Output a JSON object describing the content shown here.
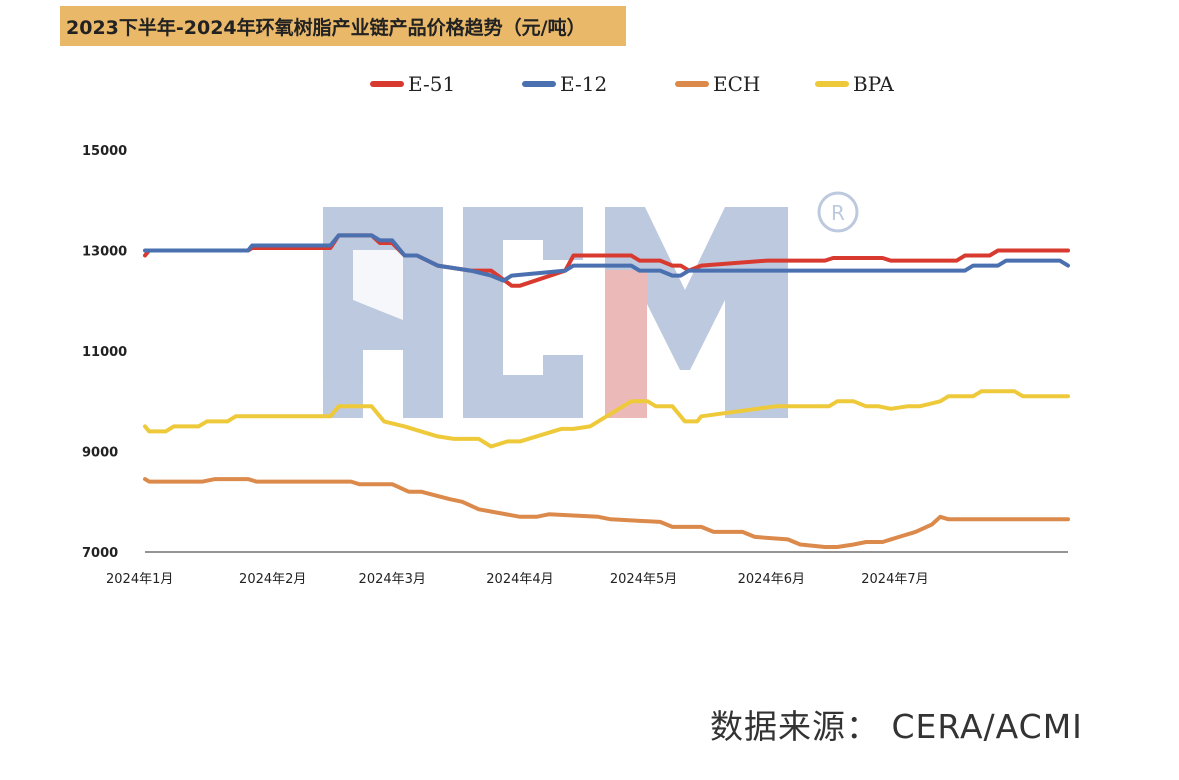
{
  "colors": {
    "E-51": "#d83a2f",
    "E-12": "#4a70b0",
    "ECH": "#dc8a4c",
    "BPA": "#eec93a",
    "title_bg": "#e9b869",
    "watermark": "#a8b8d4",
    "watermark_accent": "#e6a2a2"
  },
  "watermark": {
    "text": "ACMI"
  },
  "source": {
    "text": "数据来源： CERA/ACMI"
  },
  "chart_data": {
    "type": "line",
    "title": "2023下半年-2024年环氧树脂产业链产品价格趋势（元/吨）",
    "xlabel": "",
    "ylabel": "",
    "ylim": [
      7000,
      15000
    ],
    "yticks": [
      "7000",
      "9000",
      "11000",
      "13000",
      "15000"
    ],
    "xticks": [
      "2024年1月",
      "2024年2月",
      "2024年3月",
      "2024年4月",
      "2024年5月",
      "2024年6月",
      "2024年7月"
    ],
    "x_domain": [
      "2024-01-01",
      "2024-08-12"
    ],
    "x_tick_dates": [
      "2024-01-01",
      "2024-02-01",
      "2024-03-01",
      "2024-04-01",
      "2024-05-01",
      "2024-06-01",
      "2024-07-01"
    ],
    "legend": "top",
    "grid": false,
    "series": [
      {
        "name": "E-51",
        "x": [
          "2024-01-01",
          "2024-01-02",
          "2024-01-26",
          "2024-01-27",
          "2024-02-15",
          "2024-02-17",
          "2024-02-25",
          "2024-02-27",
          "2024-03-01",
          "2024-03-04",
          "2024-03-07",
          "2024-03-12",
          "2024-03-20",
          "2024-03-25",
          "2024-03-30",
          "2024-04-01",
          "2024-04-12",
          "2024-04-14",
          "2024-04-28",
          "2024-04-30",
          "2024-05-05",
          "2024-05-08",
          "2024-05-10",
          "2024-05-12",
          "2024-05-15",
          "2024-05-31",
          "2024-06-02",
          "2024-06-14",
          "2024-06-16",
          "2024-06-28",
          "2024-06-30",
          "2024-07-05",
          "2024-07-07",
          "2024-07-16",
          "2024-07-18",
          "2024-07-24",
          "2024-07-26",
          "2024-08-12"
        ],
        "y": [
          12900,
          13000,
          13000,
          13050,
          13050,
          13300,
          13300,
          13150,
          13150,
          12900,
          12900,
          12700,
          12600,
          12600,
          12300,
          12300,
          12600,
          12900,
          12900,
          12800,
          12800,
          12700,
          12700,
          12600,
          12700,
          12800,
          12800,
          12800,
          12850,
          12850,
          12800,
          12800,
          12800,
          12800,
          12900,
          12900,
          13000,
          13000
        ]
      },
      {
        "name": "E-12",
        "x": [
          "2024-01-01",
          "2024-01-26",
          "2024-01-27",
          "2024-02-15",
          "2024-02-17",
          "2024-02-25",
          "2024-02-27",
          "2024-03-01",
          "2024-03-04",
          "2024-03-07",
          "2024-03-12",
          "2024-03-20",
          "2024-03-25",
          "2024-03-28",
          "2024-03-30",
          "2024-04-12",
          "2024-04-14",
          "2024-04-28",
          "2024-04-30",
          "2024-05-05",
          "2024-05-08",
          "2024-05-10",
          "2024-05-12",
          "2024-07-18",
          "2024-07-20",
          "2024-07-26",
          "2024-07-28",
          "2024-08-10",
          "2024-08-12"
        ],
        "y": [
          13000,
          13000,
          13100,
          13100,
          13300,
          13300,
          13200,
          13200,
          12900,
          12900,
          12700,
          12600,
          12500,
          12400,
          12500,
          12600,
          12700,
          12700,
          12600,
          12600,
          12500,
          12500,
          12600,
          12600,
          12700,
          12700,
          12800,
          12800,
          12700
        ]
      },
      {
        "name": "ECH",
        "x": [
          "2024-01-01",
          "2024-01-02",
          "2024-01-15",
          "2024-01-18",
          "2024-01-26",
          "2024-01-28",
          "2024-02-20",
          "2024-02-22",
          "2024-03-01",
          "2024-03-05",
          "2024-03-08",
          "2024-03-15",
          "2024-03-18",
          "2024-03-22",
          "2024-04-01",
          "2024-04-05",
          "2024-04-08",
          "2024-04-20",
          "2024-04-23",
          "2024-05-05",
          "2024-05-08",
          "2024-05-15",
          "2024-05-18",
          "2024-05-25",
          "2024-05-28",
          "2024-06-05",
          "2024-06-08",
          "2024-06-14",
          "2024-06-17",
          "2024-06-21",
          "2024-06-24",
          "2024-06-28",
          "2024-07-02",
          "2024-07-06",
          "2024-07-10",
          "2024-07-12",
          "2024-07-14",
          "2024-08-12"
        ],
        "y": [
          8450,
          8400,
          8400,
          8450,
          8450,
          8400,
          8400,
          8350,
          8350,
          8200,
          8200,
          8050,
          8000,
          7850,
          7700,
          7700,
          7750,
          7700,
          7650,
          7600,
          7500,
          7500,
          7400,
          7400,
          7300,
          7250,
          7150,
          7100,
          7100,
          7150,
          7200,
          7200,
          7300,
          7400,
          7550,
          7700,
          7650,
          7650
        ]
      },
      {
        "name": "BPA",
        "x": [
          "2024-01-01",
          "2024-01-02",
          "2024-01-06",
          "2024-01-08",
          "2024-01-14",
          "2024-01-16",
          "2024-01-21",
          "2024-01-23",
          "2024-02-15",
          "2024-02-17",
          "2024-02-25",
          "2024-02-28",
          "2024-03-04",
          "2024-03-08",
          "2024-03-12",
          "2024-03-16",
          "2024-03-22",
          "2024-03-25",
          "2024-03-29",
          "2024-04-01",
          "2024-04-11",
          "2024-04-14",
          "2024-04-18",
          "2024-04-28",
          "2024-05-02",
          "2024-05-04",
          "2024-05-08",
          "2024-05-11",
          "2024-05-14",
          "2024-05-15",
          "2024-06-02",
          "2024-06-04",
          "2024-06-06",
          "2024-06-15",
          "2024-06-17",
          "2024-06-21",
          "2024-06-24",
          "2024-06-27",
          "2024-06-30",
          "2024-07-04",
          "2024-07-07",
          "2024-07-12",
          "2024-07-14",
          "2024-07-20",
          "2024-07-22",
          "2024-07-30",
          "2024-08-01",
          "2024-08-12"
        ],
        "y": [
          9500,
          9400,
          9400,
          9500,
          9500,
          9600,
          9600,
          9700,
          9700,
          9900,
          9900,
          9600,
          9500,
          9400,
          9300,
          9250,
          9250,
          9100,
          9200,
          9200,
          9450,
          9450,
          9500,
          10000,
          10000,
          9900,
          9900,
          9600,
          9600,
          9700,
          9900,
          9900,
          9900,
          9900,
          10000,
          10000,
          9900,
          9900,
          9850,
          9900,
          9900,
          10000,
          10100,
          10100,
          10200,
          10200,
          10100,
          10100
        ]
      }
    ]
  }
}
